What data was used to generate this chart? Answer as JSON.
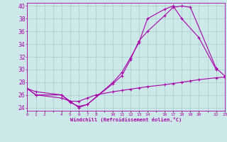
{
  "xlabel": "Windchill (Refroidissement éolien,°C)",
  "bg_color": "#cce8e8",
  "grid_color": "#aacccc",
  "line_color": "#aa00aa",
  "xlim": [
    0,
    23
  ],
  "ylim": [
    23.5,
    40.5
  ],
  "yticks": [
    24,
    26,
    28,
    30,
    32,
    34,
    36,
    38,
    40
  ],
  "xtick_labels": [
    "0",
    "1",
    "2",
    "",
    "4",
    "5",
    "6",
    "7",
    "8",
    "",
    "10",
    "11",
    "12",
    "13",
    "14",
    "",
    "16",
    "17",
    "18",
    "19",
    "20",
    "",
    "22",
    "23"
  ],
  "xtick_positions": [
    0,
    1,
    2,
    3,
    4,
    5,
    6,
    7,
    8,
    9,
    10,
    11,
    12,
    13,
    14,
    15,
    16,
    17,
    18,
    19,
    20,
    21,
    22,
    23
  ],
  "line1_x": [
    0,
    1,
    4,
    5,
    6,
    7,
    10,
    11,
    12,
    13,
    14,
    16,
    17,
    18,
    20,
    22
  ],
  "line1_y": [
    27.0,
    26.5,
    26.0,
    24.8,
    24.2,
    24.5,
    28.0,
    29.5,
    31.8,
    34.2,
    38.0,
    39.5,
    40.0,
    38.0,
    35.0,
    30.0
  ],
  "line2_x": [
    0,
    1,
    4,
    5,
    6,
    7,
    10,
    11,
    12,
    13,
    14,
    16,
    17,
    18,
    19,
    22,
    23
  ],
  "line2_y": [
    27.0,
    26.0,
    26.0,
    25.0,
    24.0,
    24.5,
    27.8,
    29.0,
    31.5,
    34.5,
    36.0,
    38.5,
    39.8,
    40.0,
    39.8,
    30.2,
    29.0
  ],
  "line3_x": [
    0,
    1,
    4,
    5,
    6,
    7,
    8,
    10,
    11,
    12,
    13,
    14,
    16,
    17,
    18,
    19,
    20,
    22,
    23
  ],
  "line3_y": [
    27.0,
    26.0,
    25.5,
    25.0,
    25.0,
    25.5,
    26.0,
    26.5,
    26.7,
    26.9,
    27.1,
    27.3,
    27.6,
    27.8,
    28.0,
    28.2,
    28.4,
    28.7,
    28.8
  ]
}
